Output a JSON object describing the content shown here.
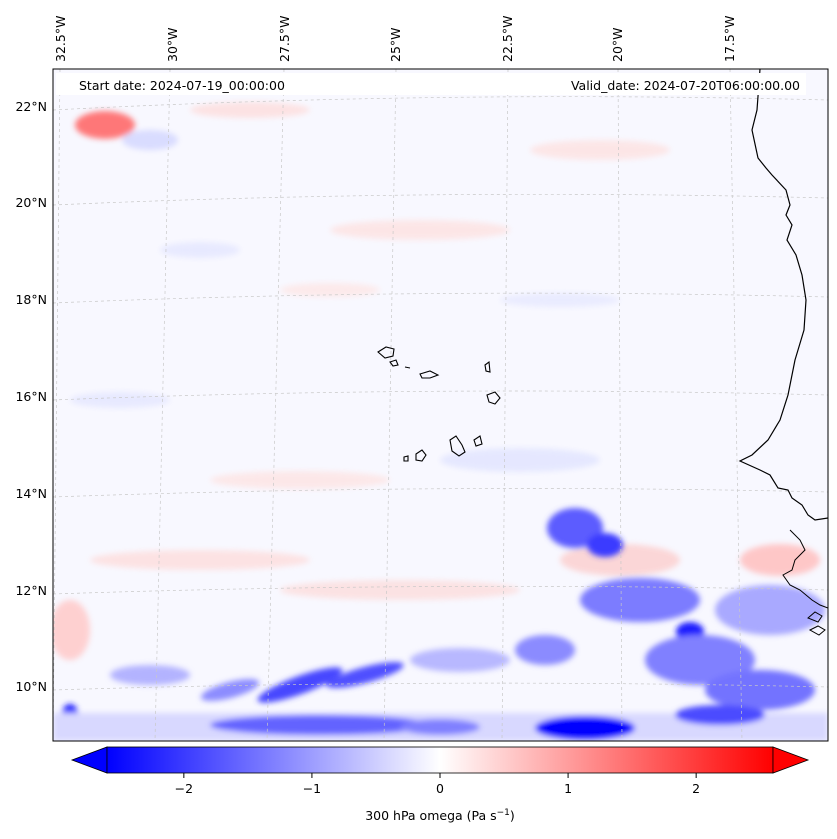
{
  "header": {
    "start_date": "Start date: 2024-07-19_00:00:00",
    "valid_date": "Valid_date: 2024-07-20T06:00:00.00"
  },
  "map": {
    "projection": "conic",
    "gridlines": "dashed light grey",
    "longitude_labels": [
      "32.5°W",
      "30°W",
      "27.5°W",
      "25°W",
      "22.5°W",
      "20°W",
      "17.5°W"
    ],
    "latitude_labels": [
      "22°N",
      "20°N",
      "18°N",
      "16°N",
      "14°N",
      "12°N",
      "10°N"
    ],
    "field": "300 hPa omega",
    "features": [
      "West African coastline",
      "Cape Verde islands"
    ]
  },
  "colorbar": {
    "label_prefix": "300 hPa omega (Pa s",
    "label_exponent": "−1",
    "label_suffix": ")",
    "ticks": [
      "−2",
      "−1",
      "0",
      "1",
      "2"
    ],
    "tick_values": [
      -2,
      -1,
      0,
      1,
      2
    ],
    "range": [
      -2.6,
      2.6
    ],
    "extend": "both",
    "colormap": "bwr",
    "colors": {
      "negative": "#0000ff",
      "zero": "#ffffff",
      "positive": "#ff0000"
    }
  }
}
